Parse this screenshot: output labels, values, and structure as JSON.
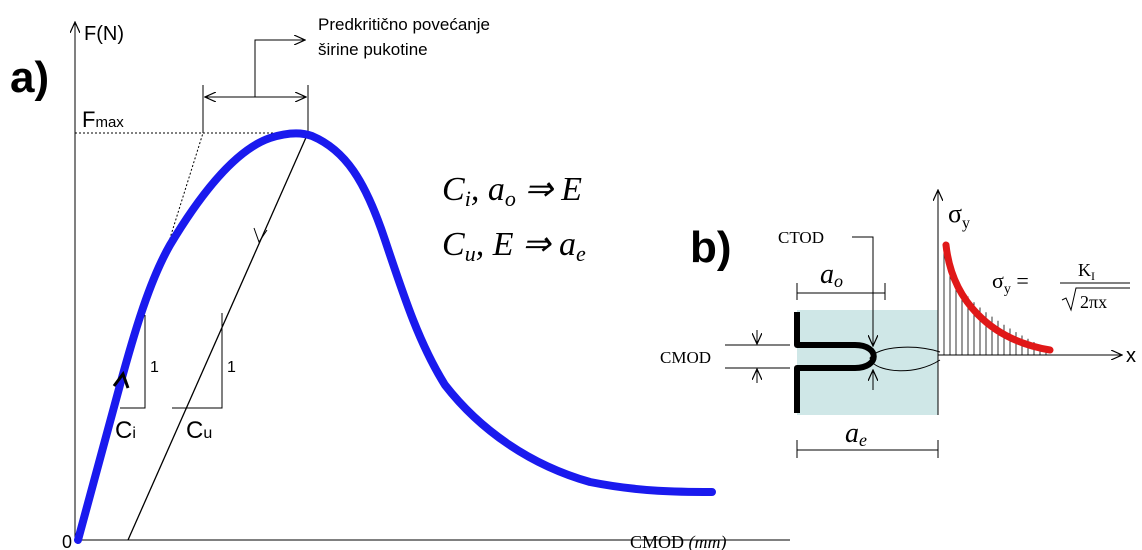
{
  "panel_a": {
    "label": "a)",
    "y_axis": "F(N)",
    "origin": "0",
    "x_axis": [
      "CMOD",
      "(mm)"
    ],
    "fmax": [
      "F",
      "max"
    ],
    "annotation": [
      "Predkritično povećanje",
      "širine pukotine"
    ],
    "equations": [
      [
        "C",
        "i",
        ", a",
        "o",
        " ⇒ E"
      ],
      [
        "C",
        "u",
        ", E ⇒ a",
        "e"
      ]
    ],
    "slope_ci": {
      "one": "1",
      "label": [
        "C",
        "i"
      ]
    },
    "slope_cu": {
      "one": "1",
      "label": [
        "C",
        "u"
      ]
    }
  },
  "panel_b": {
    "label": "b)",
    "ctod": "CTOD",
    "cmod": "CMOD",
    "ao": [
      "a",
      "o"
    ],
    "ae": [
      "a",
      "e"
    ],
    "sigma": [
      "σ",
      "y"
    ],
    "x_axis": "x",
    "formula": {
      "lhs": [
        "σ",
        "y",
        " ="
      ],
      "num": [
        "K",
        "I"
      ],
      "den": "2πx"
    }
  }
}
